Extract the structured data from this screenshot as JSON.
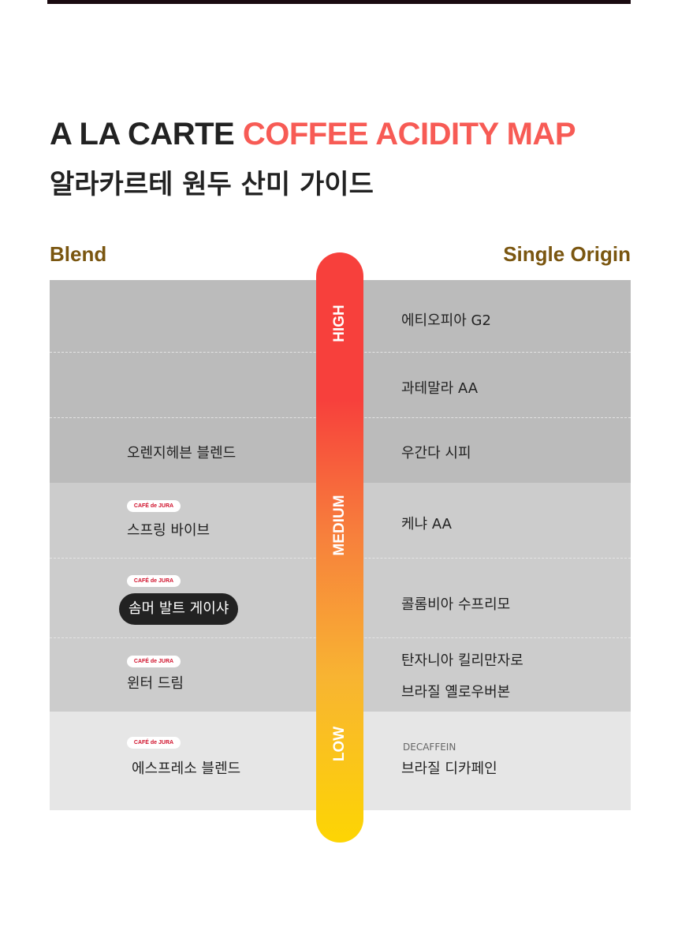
{
  "title": {
    "part1": "A LA CARTE ",
    "part2": "COFFEE ACIDITY MAP",
    "subtitle": "알라카르테 원두 산미 가이드"
  },
  "colors": {
    "accent": "#f75b55",
    "label": "#7a5610",
    "bar_top": "#f7403c",
    "bar_bottom": "#fdd503"
  },
  "columns": {
    "left": "Blend",
    "right": "Single Origin"
  },
  "scale": {
    "high": "HIGH",
    "medium": "MEDIUM",
    "low": "LOW"
  },
  "badge": "CAFÉ de JURA",
  "blend": [
    "오렌지헤븐 블렌드",
    "스프링 바이브",
    "솜머 발트 게이샤",
    "윈터 드림",
    "에스프레소 블렌드"
  ],
  "single": [
    "에티오피아 G2",
    "과테말라 AA",
    "우간다 시피",
    "케냐 AA",
    "콜롬비아 수프리모",
    "탄자니아 킬리만자로",
    "브라질 옐로우버본",
    "브라질 디카페인"
  ],
  "decaf_label": "DECAFFEIN"
}
